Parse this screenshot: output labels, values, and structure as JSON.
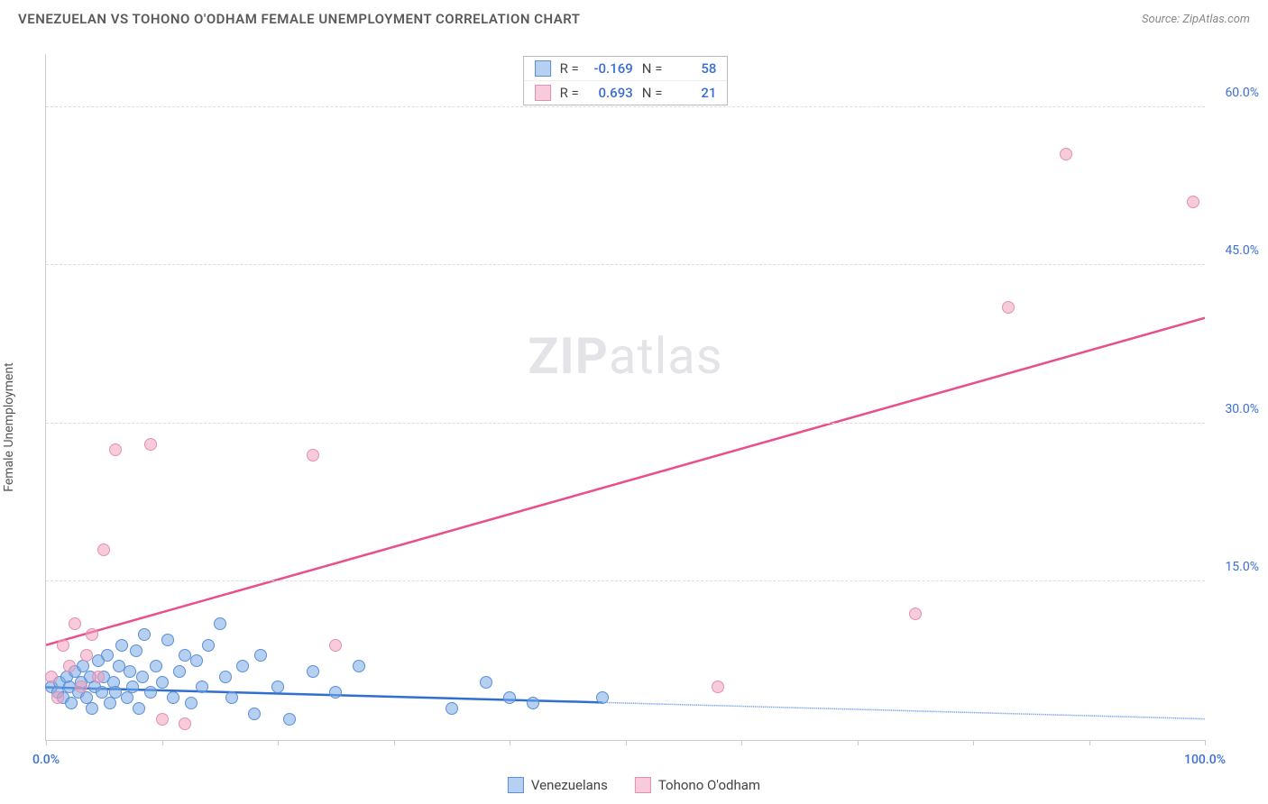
{
  "header": {
    "title": "VENEZUELAN VS TOHONO O'ODHAM FEMALE UNEMPLOYMENT CORRELATION CHART",
    "source": "Source: ZipAtlas.com"
  },
  "ylabel": "Female Unemployment",
  "watermark": {
    "bold": "ZIP",
    "rest": "atlas"
  },
  "chart": {
    "type": "scatter",
    "xlim": [
      0,
      100
    ],
    "ylim": [
      0,
      65
    ],
    "x_ticks": [
      0,
      10,
      20,
      30,
      40,
      50,
      60,
      70,
      80,
      90,
      100
    ],
    "x_tick_labels": {
      "0": "0.0%",
      "100": "100.0%"
    },
    "y_gridlines": [
      15,
      30,
      45,
      60
    ],
    "y_tick_labels": {
      "15": "15.0%",
      "30": "30.0%",
      "45": "45.0%",
      "60": "60.0%"
    },
    "x_axis_color": "#cccccc",
    "y_axis_color": "#cccccc",
    "grid_color": "#dddddd",
    "background_color": "#ffffff",
    "x_label_color": "#3b6fd6",
    "y_label_color": "#3b6fd6",
    "marker_radius": 7,
    "series": [
      {
        "name": "Venezuelans",
        "fill": "rgba(120,170,230,0.55)",
        "stroke": "#5b8fd6",
        "line_color": "#2f6fd0",
        "line_dash_color": "#6a9ae0",
        "R": "-0.169",
        "N": "58",
        "regression": {
          "x1": 0,
          "y1": 5.0,
          "x2": 100,
          "y2": 2.0,
          "solid_until_x": 48
        },
        "points": [
          [
            0.5,
            5
          ],
          [
            1,
            4.5
          ],
          [
            1.2,
            5.5
          ],
          [
            1.5,
            4
          ],
          [
            1.8,
            6
          ],
          [
            2,
            5
          ],
          [
            2.2,
            3.5
          ],
          [
            2.5,
            6.5
          ],
          [
            2.8,
            4.5
          ],
          [
            3,
            5.5
          ],
          [
            3.2,
            7
          ],
          [
            3.5,
            4
          ],
          [
            3.8,
            6
          ],
          [
            4,
            3
          ],
          [
            4.2,
            5
          ],
          [
            4.5,
            7.5
          ],
          [
            4.8,
            4.5
          ],
          [
            5,
            6
          ],
          [
            5.3,
            8
          ],
          [
            5.5,
            3.5
          ],
          [
            5.8,
            5.5
          ],
          [
            6,
            4.5
          ],
          [
            6.3,
            7
          ],
          [
            6.5,
            9
          ],
          [
            7,
            4
          ],
          [
            7.2,
            6.5
          ],
          [
            7.5,
            5
          ],
          [
            7.8,
            8.5
          ],
          [
            8,
            3
          ],
          [
            8.3,
            6
          ],
          [
            8.5,
            10
          ],
          [
            9,
            4.5
          ],
          [
            9.5,
            7
          ],
          [
            10,
            5.5
          ],
          [
            10.5,
            9.5
          ],
          [
            11,
            4
          ],
          [
            11.5,
            6.5
          ],
          [
            12,
            8
          ],
          [
            12.5,
            3.5
          ],
          [
            13,
            7.5
          ],
          [
            13.5,
            5
          ],
          [
            14,
            9
          ],
          [
            15,
            11
          ],
          [
            15.5,
            6
          ],
          [
            16,
            4
          ],
          [
            17,
            7
          ],
          [
            18,
            2.5
          ],
          [
            18.5,
            8
          ],
          [
            20,
            5
          ],
          [
            21,
            2
          ],
          [
            23,
            6.5
          ],
          [
            25,
            4.5
          ],
          [
            27,
            7
          ],
          [
            35,
            3
          ],
          [
            38,
            5.5
          ],
          [
            40,
            4
          ],
          [
            42,
            3.5
          ],
          [
            48,
            4
          ]
        ]
      },
      {
        "name": "Tohono O'odham",
        "fill": "rgba(240,160,190,0.55)",
        "stroke": "#e290b0",
        "line_color": "#e94f8a",
        "R": "0.693",
        "N": "21",
        "regression": {
          "x1": 0,
          "y1": 9.0,
          "x2": 100,
          "y2": 40.0,
          "solid_until_x": 100
        },
        "points": [
          [
            0.5,
            6
          ],
          [
            1,
            4
          ],
          [
            1.5,
            9
          ],
          [
            2,
            7
          ],
          [
            2.5,
            11
          ],
          [
            3,
            5
          ],
          [
            3.5,
            8
          ],
          [
            4,
            10
          ],
          [
            4.5,
            6
          ],
          [
            5,
            18
          ],
          [
            6,
            27.5
          ],
          [
            9,
            28
          ],
          [
            10,
            2
          ],
          [
            12,
            1.5
          ],
          [
            23,
            27
          ],
          [
            25,
            9
          ],
          [
            58,
            5
          ],
          [
            75,
            12
          ],
          [
            83,
            41
          ],
          [
            88,
            55.5
          ],
          [
            99,
            51
          ]
        ]
      }
    ]
  },
  "stat_box": {
    "r_label": "R =",
    "n_label": "N =",
    "value_color": "#3b6fd6"
  },
  "legend_items": [
    "Venezuelans",
    "Tohono O'odham"
  ]
}
